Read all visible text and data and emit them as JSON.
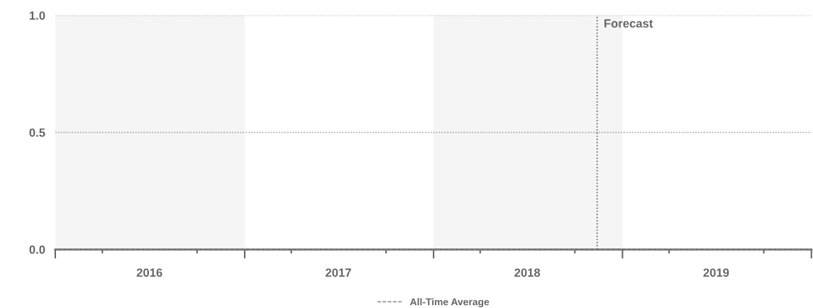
{
  "chart_data": {
    "type": "line",
    "xlim": [
      "2016-01-01",
      "2020-01-01"
    ],
    "xticks": [
      {
        "value": "2016-01-01",
        "label": null
      },
      {
        "value": "2016-04-01",
        "label": null
      },
      {
        "value": "2016-07-01",
        "label": "2016"
      },
      {
        "value": "2016-10-01",
        "label": null
      },
      {
        "value": "2017-01-01",
        "label": null
      },
      {
        "value": "2017-04-01",
        "label": null
      },
      {
        "value": "2017-07-01",
        "label": "2017"
      },
      {
        "value": "2017-10-01",
        "label": null
      },
      {
        "value": "2018-01-01",
        "label": null
      },
      {
        "value": "2018-04-01",
        "label": null
      },
      {
        "value": "2018-07-01",
        "label": "2018"
      },
      {
        "value": "2018-10-01",
        "label": null
      },
      {
        "value": "2019-01-01",
        "label": null
      },
      {
        "value": "2019-04-01",
        "label": null
      },
      {
        "value": "2019-07-01",
        "label": "2019"
      },
      {
        "value": "2019-10-01",
        "label": null
      },
      {
        "value": "2020-01-01",
        "label": null
      }
    ],
    "ylim": [
      0,
      1
    ],
    "yticks": [
      {
        "value": 0,
        "label": "0.0"
      },
      0.5,
      {
        "value": 1,
        "label": "1.0"
      }
    ],
    "line_style": "dashed",
    "grid": "y",
    "series": [
      {
        "name": "All-Time Average",
        "color": "#888888",
        "x": [
          "2016-01-01",
          "2020-01-01"
        ],
        "values": [
          0,
          0
        ]
      }
    ],
    "bands": [
      {
        "axis": "x",
        "from": "2016-01-01",
        "to": "2017-01-01",
        "color": "#f5f5f5"
      },
      {
        "axis": "x",
        "from": "2018-01-01",
        "to": "2019-01-01",
        "color": "#f5f5f5"
      }
    ],
    "ref_lines": [
      {
        "axis": "x",
        "value": "2018-11-13",
        "label": "Forecast",
        "color": "#555555",
        "line_style": "dotted"
      }
    ],
    "legend": "bottom"
  }
}
